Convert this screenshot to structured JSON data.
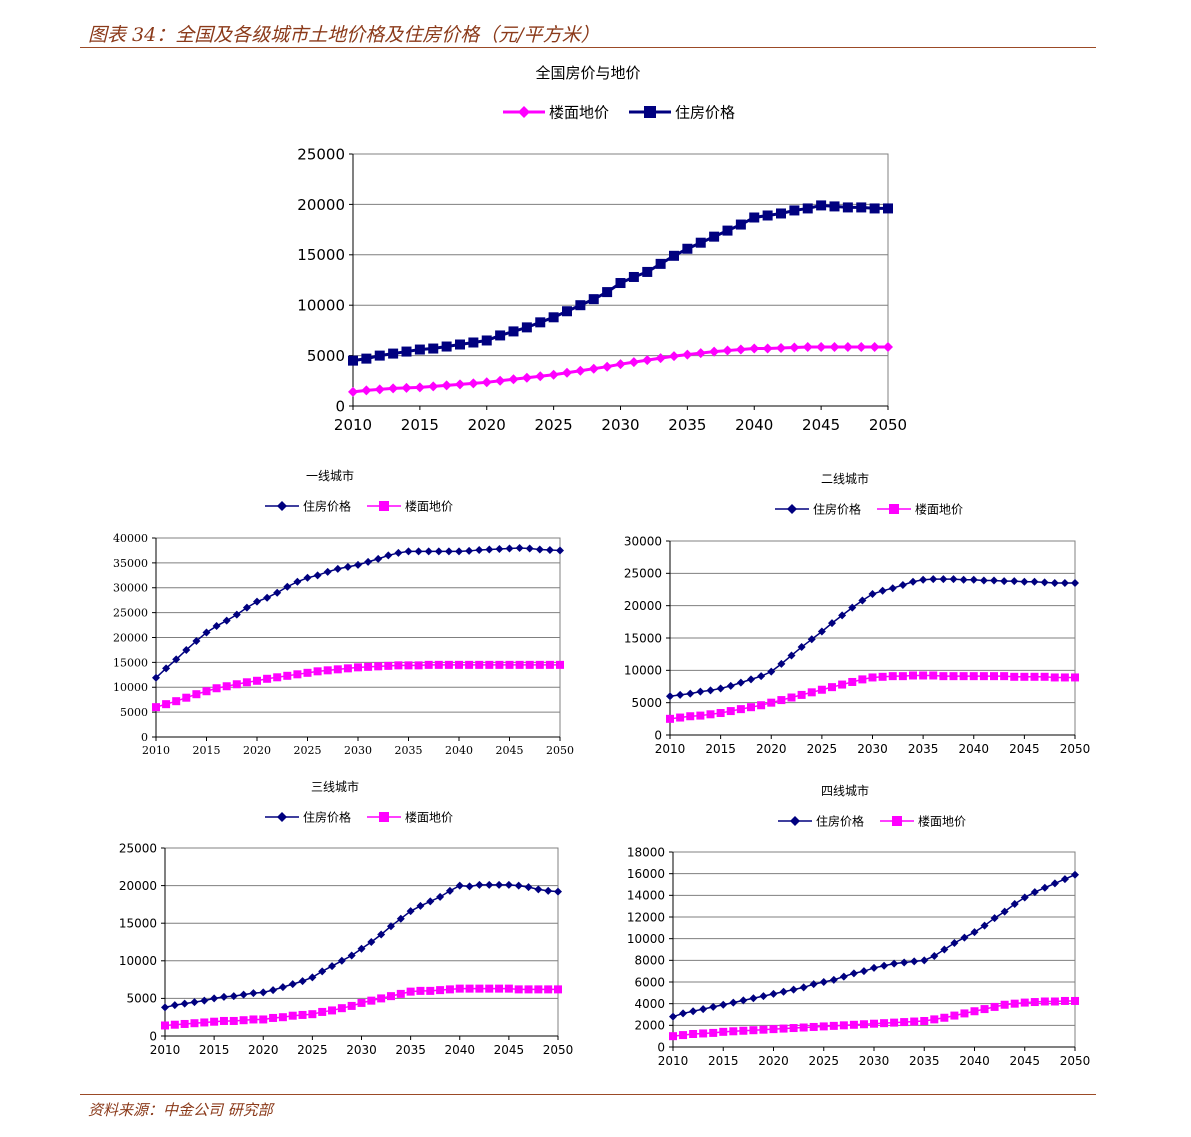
{
  "figure": {
    "title": "图表 34：全国及各级城市土地价格及住房价格（元/平方米）",
    "source": "资料来源：中金公司 研究部"
  },
  "colors": {
    "housing": "#00007F",
    "land": "#FF00FF",
    "accent": "#8B3A1A"
  },
  "chart_data": [
    {
      "id": "national",
      "type": "line",
      "title": "全国房价与地价",
      "xlim": [
        2010,
        2050
      ],
      "ylim": [
        0,
        25000
      ],
      "x_ticks": [
        "2010",
        "2015",
        "2020",
        "2025",
        "2030",
        "2035",
        "2040",
        "2045",
        "2050"
      ],
      "y_ticks": [
        "0",
        "5000",
        "10000",
        "15000",
        "20000",
        "25000"
      ],
      "grid": true,
      "legend_position": "top",
      "x": [
        2010,
        2011,
        2012,
        2013,
        2014,
        2015,
        2016,
        2017,
        2018,
        2019,
        2020,
        2021,
        2022,
        2023,
        2024,
        2025,
        2026,
        2027,
        2028,
        2029,
        2030,
        2031,
        2032,
        2033,
        2034,
        2035,
        2036,
        2037,
        2038,
        2039,
        2040,
        2041,
        2042,
        2043,
        2044,
        2045,
        2046,
        2047,
        2048,
        2049,
        2050
      ],
      "series": [
        {
          "name": "楼面地价",
          "marker": "diamond",
          "color": "#FF00FF",
          "values": [
            1400,
            1550,
            1650,
            1750,
            1800,
            1850,
            1950,
            2050,
            2150,
            2250,
            2350,
            2500,
            2650,
            2800,
            2950,
            3100,
            3300,
            3500,
            3700,
            3900,
            4150,
            4350,
            4550,
            4750,
            4950,
            5100,
            5250,
            5400,
            5500,
            5600,
            5700,
            5700,
            5750,
            5800,
            5850,
            5850,
            5850,
            5850,
            5850,
            5850,
            5850
          ]
        },
        {
          "name": "住房价格",
          "marker": "square",
          "color": "#00007F",
          "values": [
            4500,
            4700,
            5000,
            5200,
            5400,
            5600,
            5700,
            5900,
            6100,
            6300,
            6500,
            7000,
            7400,
            7800,
            8300,
            8800,
            9400,
            10000,
            10600,
            11300,
            12200,
            12800,
            13300,
            14100,
            14900,
            15600,
            16200,
            16800,
            17400,
            18000,
            18700,
            18900,
            19100,
            19400,
            19600,
            19900,
            19800,
            19700,
            19700,
            19600,
            19600
          ]
        }
      ]
    },
    {
      "id": "tier1",
      "type": "line",
      "title": "一线城市",
      "xlim": [
        2010,
        2050
      ],
      "ylim": [
        0,
        40000
      ],
      "x_ticks": [
        "2010",
        "2015",
        "2020",
        "2025",
        "2030",
        "2035",
        "2040",
        "2045",
        "2050"
      ],
      "y_ticks": [
        "0",
        "5000",
        "10000",
        "15000",
        "20000",
        "25000",
        "30000",
        "35000",
        "40000"
      ],
      "grid": true,
      "legend_position": "top",
      "x": [
        2010,
        2011,
        2012,
        2013,
        2014,
        2015,
        2016,
        2017,
        2018,
        2019,
        2020,
        2021,
        2022,
        2023,
        2024,
        2025,
        2026,
        2027,
        2028,
        2029,
        2030,
        2031,
        2032,
        2033,
        2034,
        2035,
        2036,
        2037,
        2038,
        2039,
        2040,
        2041,
        2042,
        2043,
        2044,
        2045,
        2046,
        2047,
        2048,
        2049,
        2050
      ],
      "series": [
        {
          "name": "住房价格",
          "marker": "diamond",
          "color": "#00007F",
          "values": [
            11900,
            13800,
            15600,
            17500,
            19300,
            21000,
            22300,
            23400,
            24600,
            26000,
            27200,
            28000,
            29000,
            30200,
            31200,
            32000,
            32500,
            33200,
            33800,
            34200,
            34600,
            35200,
            35800,
            36500,
            37000,
            37300,
            37300,
            37300,
            37300,
            37300,
            37300,
            37400,
            37600,
            37700,
            37800,
            37900,
            38000,
            37900,
            37700,
            37600,
            37500
          ]
        },
        {
          "name": "楼面地价",
          "marker": "square",
          "color": "#FF00FF",
          "values": [
            6000,
            6600,
            7200,
            7900,
            8600,
            9200,
            9800,
            10200,
            10600,
            11000,
            11300,
            11700,
            12000,
            12300,
            12600,
            12900,
            13200,
            13400,
            13600,
            13800,
            14000,
            14100,
            14200,
            14300,
            14400,
            14400,
            14400,
            14500,
            14500,
            14500,
            14500,
            14500,
            14500,
            14500,
            14500,
            14500,
            14500,
            14500,
            14500,
            14500,
            14500
          ]
        }
      ]
    },
    {
      "id": "tier2",
      "type": "line",
      "title": "二线城市",
      "xlim": [
        2010,
        2050
      ],
      "ylim": [
        0,
        30000
      ],
      "x_ticks": [
        "2010",
        "2015",
        "2020",
        "2025",
        "2030",
        "2035",
        "2040",
        "2045",
        "2050"
      ],
      "y_ticks": [
        "0",
        "5000",
        "10000",
        "15000",
        "20000",
        "25000",
        "30000"
      ],
      "grid": true,
      "legend_position": "top",
      "x": [
        2010,
        2011,
        2012,
        2013,
        2014,
        2015,
        2016,
        2017,
        2018,
        2019,
        2020,
        2021,
        2022,
        2023,
        2024,
        2025,
        2026,
        2027,
        2028,
        2029,
        2030,
        2031,
        2032,
        2033,
        2034,
        2035,
        2036,
        2037,
        2038,
        2039,
        2040,
        2041,
        2042,
        2043,
        2044,
        2045,
        2046,
        2047,
        2048,
        2049,
        2050
      ],
      "series": [
        {
          "name": "住房价格",
          "marker": "diamond",
          "color": "#00007F",
          "values": [
            6000,
            6200,
            6400,
            6700,
            6900,
            7200,
            7600,
            8100,
            8600,
            9100,
            9800,
            11000,
            12300,
            13600,
            14800,
            16000,
            17300,
            18500,
            19700,
            20800,
            21800,
            22300,
            22700,
            23200,
            23700,
            24000,
            24100,
            24100,
            24100,
            24000,
            24000,
            23900,
            23900,
            23800,
            23800,
            23700,
            23700,
            23600,
            23500,
            23500,
            23500
          ]
        },
        {
          "name": "楼面地价",
          "marker": "square",
          "color": "#FF00FF",
          "values": [
            2500,
            2700,
            2900,
            3000,
            3200,
            3400,
            3700,
            4000,
            4300,
            4600,
            5000,
            5400,
            5800,
            6200,
            6600,
            7000,
            7400,
            7800,
            8200,
            8600,
            8900,
            9000,
            9100,
            9100,
            9200,
            9200,
            9200,
            9100,
            9100,
            9100,
            9100,
            9100,
            9100,
            9100,
            9000,
            9000,
            9000,
            9000,
            8900,
            8900,
            8900
          ]
        }
      ]
    },
    {
      "id": "tier3",
      "type": "line",
      "title": "三线城市",
      "xlim": [
        2010,
        2050
      ],
      "ylim": [
        0,
        25000
      ],
      "x_ticks": [
        "2010",
        "2015",
        "2020",
        "2025",
        "2030",
        "2035",
        "2040",
        "2045",
        "2050"
      ],
      "y_ticks": [
        "0",
        "5000",
        "10000",
        "15000",
        "20000",
        "25000"
      ],
      "grid": true,
      "legend_position": "top",
      "x": [
        2010,
        2011,
        2012,
        2013,
        2014,
        2015,
        2016,
        2017,
        2018,
        2019,
        2020,
        2021,
        2022,
        2023,
        2024,
        2025,
        2026,
        2027,
        2028,
        2029,
        2030,
        2031,
        2032,
        2033,
        2034,
        2035,
        2036,
        2037,
        2038,
        2039,
        2040,
        2041,
        2042,
        2043,
        2044,
        2045,
        2046,
        2047,
        2048,
        2049,
        2050
      ],
      "series": [
        {
          "name": "住房价格",
          "marker": "diamond",
          "color": "#00007F",
          "values": [
            3800,
            4100,
            4300,
            4500,
            4700,
            5000,
            5200,
            5300,
            5500,
            5700,
            5800,
            6100,
            6500,
            6900,
            7300,
            7800,
            8600,
            9300,
            10000,
            10700,
            11600,
            12500,
            13500,
            14600,
            15600,
            16600,
            17300,
            17900,
            18500,
            19300,
            20000,
            19900,
            20100,
            20100,
            20100,
            20100,
            20000,
            19800,
            19500,
            19300,
            19200
          ]
        },
        {
          "name": "楼面地价",
          "marker": "square",
          "color": "#FF00FF",
          "values": [
            1400,
            1500,
            1600,
            1700,
            1800,
            1900,
            2000,
            2000,
            2100,
            2200,
            2200,
            2400,
            2500,
            2700,
            2800,
            2900,
            3200,
            3400,
            3700,
            4000,
            4400,
            4700,
            5000,
            5300,
            5600,
            5900,
            6000,
            6000,
            6100,
            6200,
            6300,
            6300,
            6300,
            6300,
            6300,
            6300,
            6200,
            6200,
            6200,
            6200,
            6200
          ]
        }
      ]
    },
    {
      "id": "tier4",
      "type": "line",
      "title": "四线城市",
      "xlim": [
        2010,
        2050
      ],
      "ylim": [
        0,
        18000
      ],
      "x_ticks": [
        "2010",
        "2015",
        "2020",
        "2025",
        "2030",
        "2035",
        "2040",
        "2045",
        "2050"
      ],
      "y_ticks": [
        "0",
        "2000",
        "4000",
        "6000",
        "8000",
        "10000",
        "12000",
        "14000",
        "16000",
        "18000"
      ],
      "grid": true,
      "legend_position": "top",
      "x": [
        2010,
        2011,
        2012,
        2013,
        2014,
        2015,
        2016,
        2017,
        2018,
        2019,
        2020,
        2021,
        2022,
        2023,
        2024,
        2025,
        2026,
        2027,
        2028,
        2029,
        2030,
        2031,
        2032,
        2033,
        2034,
        2035,
        2036,
        2037,
        2038,
        2039,
        2040,
        2041,
        2042,
        2043,
        2044,
        2045,
        2046,
        2047,
        2048,
        2049,
        2050
      ],
      "series": [
        {
          "name": "住房价格",
          "marker": "diamond",
          "color": "#00007F",
          "values": [
            2800,
            3100,
            3300,
            3500,
            3700,
            3900,
            4100,
            4300,
            4500,
            4700,
            4900,
            5100,
            5300,
            5500,
            5800,
            6000,
            6200,
            6500,
            6800,
            7000,
            7300,
            7500,
            7700,
            7800,
            7900,
            8000,
            8400,
            9000,
            9600,
            10100,
            10600,
            11200,
            11900,
            12500,
            13200,
            13800,
            14300,
            14700,
            15100,
            15500,
            15900
          ]
        },
        {
          "name": "楼面地价",
          "marker": "square",
          "color": "#FF00FF",
          "values": [
            1000,
            1100,
            1200,
            1250,
            1300,
            1400,
            1450,
            1500,
            1550,
            1600,
            1650,
            1700,
            1750,
            1800,
            1850,
            1900,
            1950,
            2000,
            2050,
            2100,
            2150,
            2200,
            2250,
            2300,
            2350,
            2400,
            2550,
            2700,
            2900,
            3100,
            3300,
            3500,
            3700,
            3900,
            4000,
            4100,
            4150,
            4200,
            4200,
            4250,
            4250
          ]
        }
      ]
    }
  ]
}
